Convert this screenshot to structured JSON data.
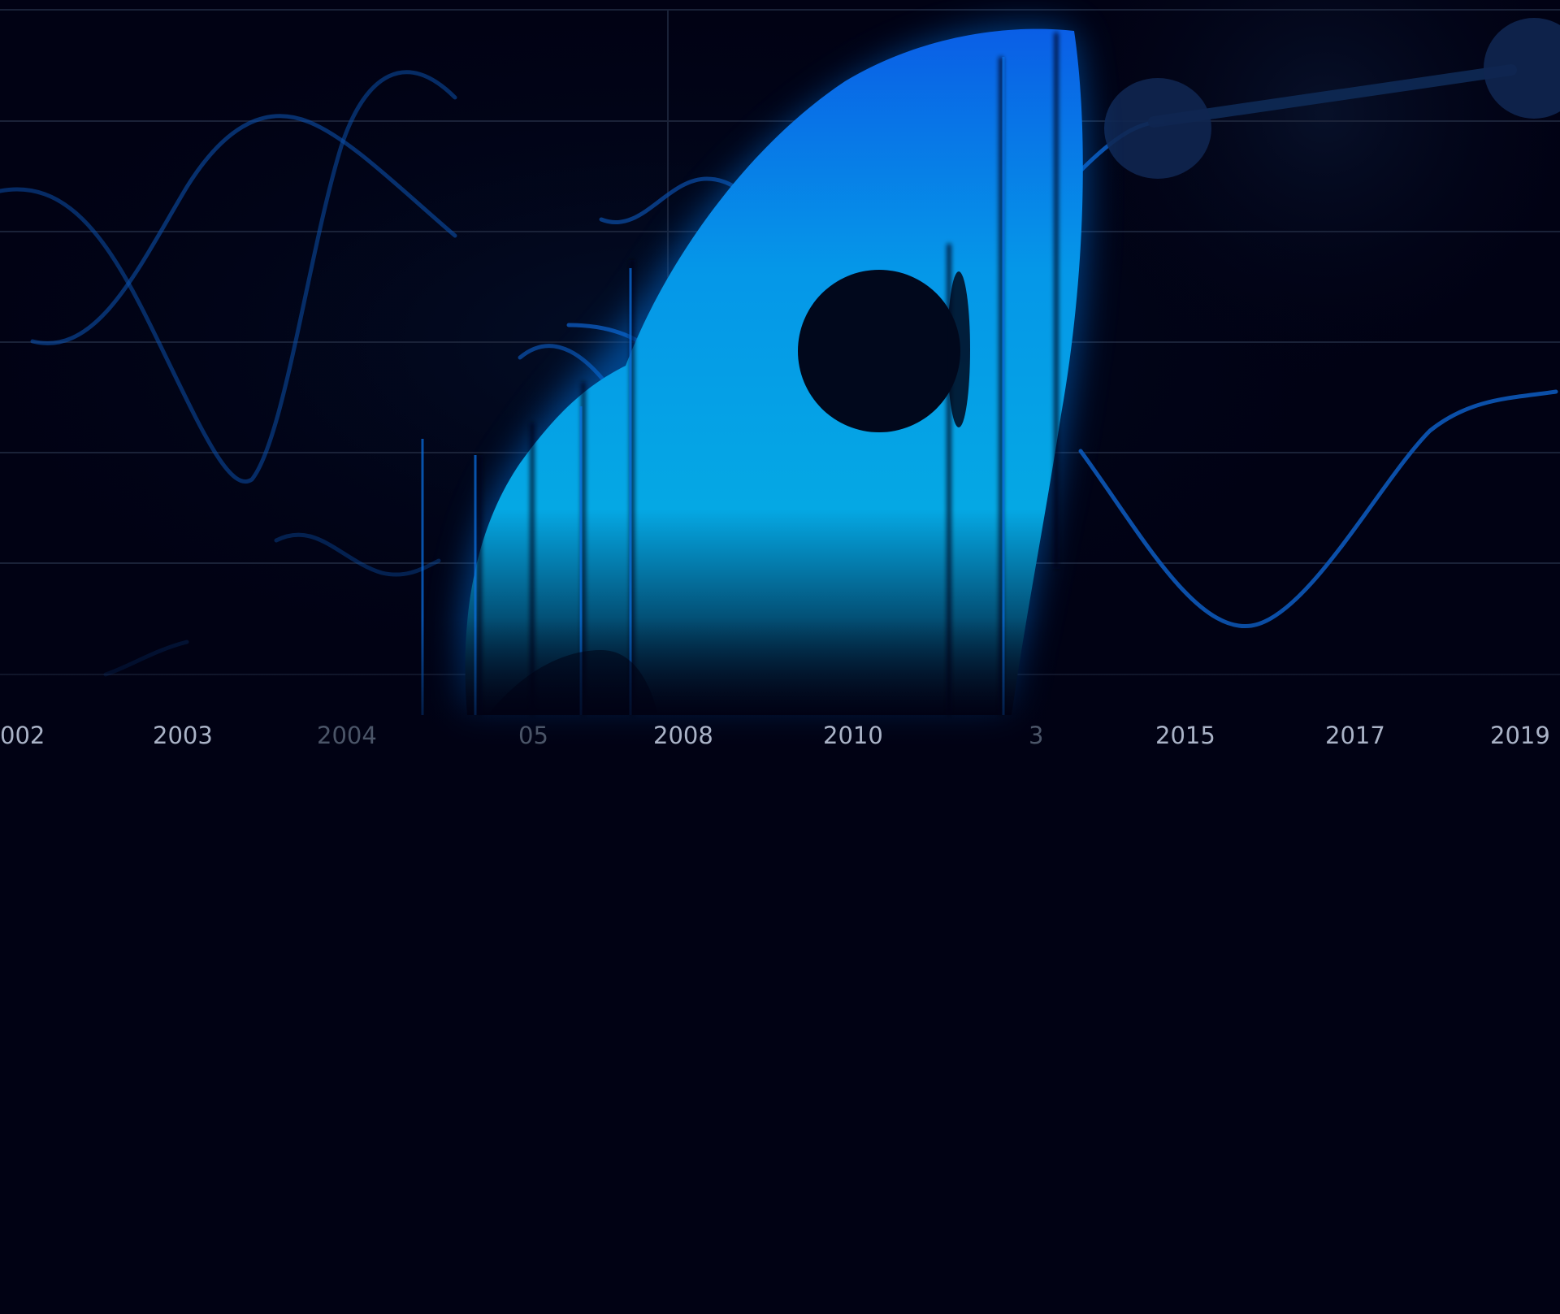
{
  "page": {
    "background_color": "#010214"
  },
  "hero": {
    "accent_color": "#0a74e8",
    "glow_color": "#05a8ec",
    "line_color": "#0b4fa8",
    "grid_color": "#1a2238",
    "icon": "rocket-icon",
    "axis": {
      "labels": [
        "002",
        "2003",
        "2004",
        "05",
        "2008",
        "2010",
        "3",
        "2015",
        "2017",
        "2019"
      ],
      "dim_labels": [
        "2004",
        "05",
        "3"
      ]
    }
  }
}
